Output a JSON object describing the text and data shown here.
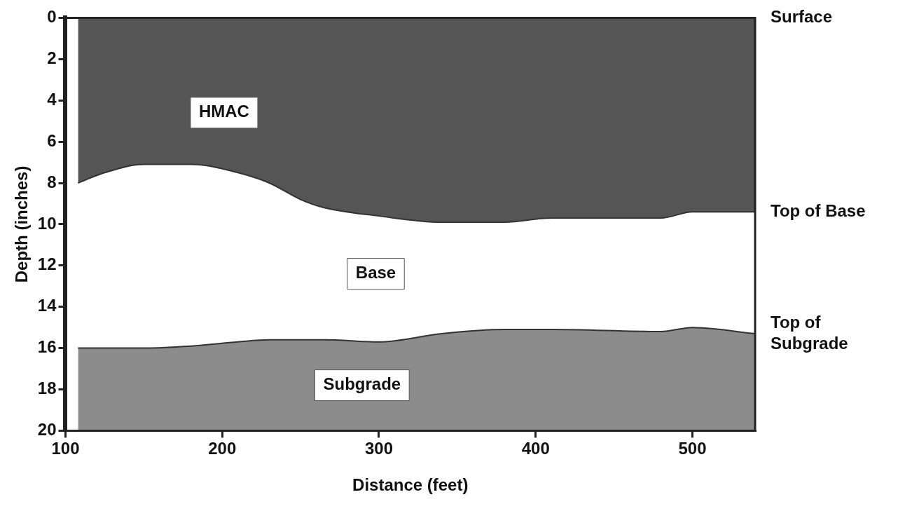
{
  "chart_data": {
    "type": "area",
    "stacked": true,
    "xlabel": "Distance (feet)",
    "ylabel": "Depth (inches)",
    "xlim": [
      100,
      540
    ],
    "xticks": [
      100,
      200,
      300,
      400,
      500
    ],
    "ylim": [
      20,
      0
    ],
    "yticks": [
      0,
      2,
      4,
      6,
      8,
      10,
      12,
      14,
      16,
      18,
      20
    ],
    "x": [
      108,
      125,
      150,
      180,
      210,
      230,
      250,
      265,
      300,
      340,
      380,
      410,
      480,
      500,
      540
    ],
    "series": [
      {
        "name": "HMAC",
        "color": "#555555",
        "values": [
          8.0,
          7.5,
          7.1,
          7.1,
          7.5,
          8.0,
          8.8,
          9.2,
          9.6,
          9.9,
          9.9,
          9.7,
          9.7,
          9.4,
          9.4
        ]
      },
      {
        "name": "Base",
        "color": "#ffffff",
        "values": [
          8.0,
          8.5,
          8.9,
          8.8,
          8.2,
          7.6,
          6.8,
          6.4,
          6.1,
          5.4,
          5.2,
          5.4,
          5.5,
          5.6,
          5.9
        ]
      },
      {
        "name": "Subgrade",
        "color": "#8c8c8c",
        "values": [
          4.0,
          4.0,
          4.0,
          4.1,
          4.3,
          4.4,
          4.4,
          4.4,
          4.3,
          4.7,
          4.9,
          4.9,
          4.8,
          5.0,
          4.7
        ]
      }
    ],
    "annotations": [
      "Surface",
      "Top of Base",
      "Top of Subgrade"
    ],
    "grid": false,
    "legend": false
  }
}
